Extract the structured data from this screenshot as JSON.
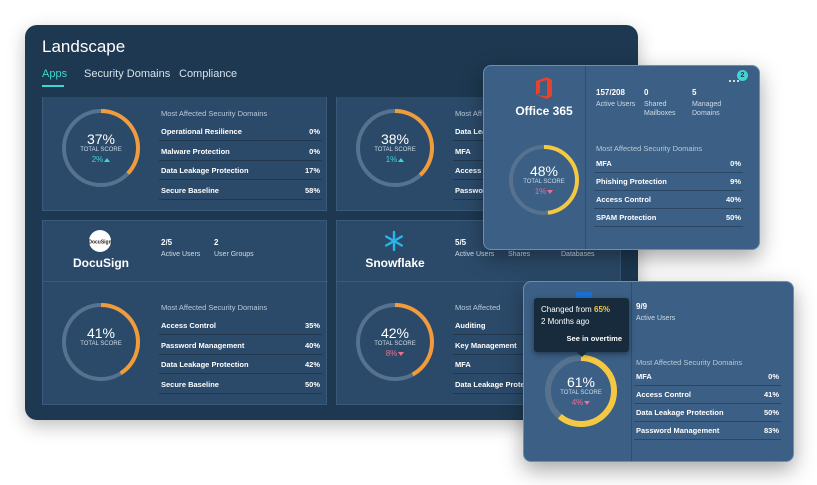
{
  "header": {
    "title": "Landscape"
  },
  "tabs": [
    "Apps",
    "Security Domains",
    "Compliance"
  ],
  "cards": [
    {
      "score": "37%",
      "score_label": "TOTAL SCORE",
      "change": "2%",
      "trend": "up",
      "color": "#f29b3a",
      "domains_title": "Most Affected Security Domains",
      "domains": [
        {
          "name": "Operational Resilience",
          "value": "0%"
        },
        {
          "name": "Malware Protection",
          "value": "0%"
        },
        {
          "name": "Data Leakage Protection",
          "value": "17%"
        },
        {
          "name": "Secure Baseline",
          "value": "58%"
        }
      ]
    },
    {
      "score": "38%",
      "score_label": "TOTAL SCORE",
      "change": "1%",
      "trend": "up",
      "color": "#f29b3a",
      "domains_title": "Most Aff",
      "domains": [
        {
          "name": "Data Lea"
        },
        {
          "name": "MFA"
        },
        {
          "name": "Access C"
        },
        {
          "name": "Passwo"
        }
      ]
    },
    {
      "name": "DocuSign",
      "logo_text": "DocuSign",
      "score": "41%",
      "score_label": "TOTAL SCORE",
      "color": "#f29b3a",
      "stats": [
        {
          "value": "2/5",
          "label": "Active Users"
        },
        {
          "value": "2",
          "label": "User Groups"
        }
      ],
      "domains_title": "Most Affected Security Domains",
      "domains": [
        {
          "name": "Access Control",
          "value": "35%"
        },
        {
          "name": "Password Management",
          "value": "40%"
        },
        {
          "name": "Data Leakage Protection",
          "value": "42%"
        },
        {
          "name": "Secure Baseline",
          "value": "50%"
        }
      ]
    },
    {
      "name": "Snowflake",
      "score": "42%",
      "score_label": "TOTAL SCORE",
      "change": "8%",
      "trend": "down",
      "color": "#f29b3a",
      "stats": [
        {
          "value": "5/5",
          "label": "Active Users"
        },
        {
          "label": "Shares"
        },
        {
          "label": "Databases"
        }
      ],
      "domains_title": "Most Affected",
      "domains": [
        {
          "name": "Auditing"
        },
        {
          "name": "Key Management"
        },
        {
          "name": "MFA"
        },
        {
          "name": "Data Leakage Protec"
        }
      ]
    }
  ],
  "popups": [
    {
      "name": "Office 365",
      "badge": "2",
      "score": "48%",
      "score_label": "TOTAL SCORE",
      "change": "1%",
      "trend": "down",
      "color": "#f5c842",
      "stats": [
        {
          "value": "157/208",
          "label": "Active Users"
        },
        {
          "value": "0",
          "label": "Shared Mailboxes"
        },
        {
          "value": "5",
          "label": "Managed Domains"
        }
      ],
      "domains_title": "Most Affected Security Domains",
      "domains": [
        {
          "name": "MFA",
          "value": "0%"
        },
        {
          "name": "Phishing Protection",
          "value": "9%"
        },
        {
          "name": "Access Control",
          "value": "40%"
        },
        {
          "name": "SPAM Protection",
          "value": "50%"
        }
      ]
    },
    {
      "score": "61%",
      "score_label": "TOTAL SCORE",
      "change": "4%",
      "trend": "down",
      "color": "#f5c842",
      "stats": [
        {
          "value": "9/9",
          "label": "Active Users"
        }
      ],
      "tooltip": {
        "text": "Changed from",
        "highlight": "65%",
        "time": "2 Months ago",
        "link": "See in overtime"
      },
      "domains_title": "Most Affected Security Domains",
      "domains": [
        {
          "name": "MFA",
          "value": "0%"
        },
        {
          "name": "Access Control",
          "value": "41%"
        },
        {
          "name": "Data Leakage Protection",
          "value": "50%"
        },
        {
          "name": "Password Management",
          "value": "83%"
        }
      ]
    }
  ]
}
